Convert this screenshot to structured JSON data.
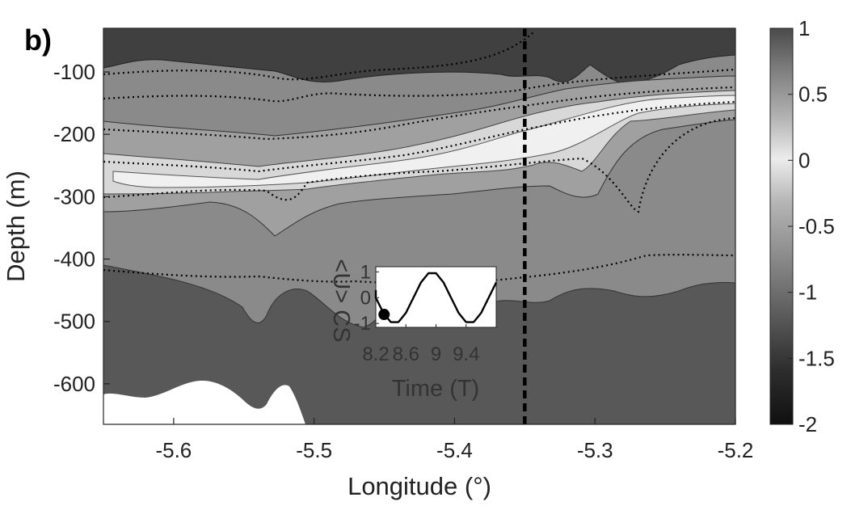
{
  "panel_label": "b)",
  "chart_data": [
    {
      "type": "heatmap",
      "title": "",
      "xlabel": "Longitude (°)",
      "ylabel": "Depth (m)",
      "xlim": [
        -5.65,
        -5.2
      ],
      "ylim": [
        -665,
        -30
      ],
      "x_ticks": [
        -5.6,
        -5.5,
        -5.4,
        -5.3,
        -5.2
      ],
      "x_tick_labels": [
        "-5.6",
        "-5.5",
        "-5.4",
        "-5.3",
        "-5.2"
      ],
      "y_ticks": [
        -100,
        -200,
        -300,
        -400,
        -500,
        -600
      ],
      "y_tick_labels": [
        "-100",
        "-200",
        "-300",
        "-400",
        "-500",
        "-600"
      ],
      "colorbar": {
        "range": [
          -2,
          1
        ],
        "ticks": [
          1,
          0.5,
          0,
          -0.5,
          -1,
          -1.5,
          -2
        ],
        "tick_labels": [
          "1",
          "0.5",
          "0",
          "-0.5",
          "-1",
          "-1.5",
          "-2"
        ],
        "colormap": "gray"
      },
      "vertical_marker_x": -5.35,
      "bottom_topography_masked": true,
      "grid": false
    },
    {
      "type": "line",
      "title": "",
      "xlabel": "Time (T)",
      "ylabel": "<U> CS",
      "xlim": [
        8.2,
        9.8
      ],
      "ylim": [
        -1,
        1
      ],
      "x_ticks": [
        8.2,
        8.6,
        9,
        9.4
      ],
      "x_tick_labels": [
        "8.2",
        "8.6",
        "9",
        "9.4"
      ],
      "y_ticks": [
        1,
        0,
        -1
      ],
      "y_tick_labels": [
        "1",
        "0",
        "-1"
      ],
      "series": [
        {
          "x": [
            8.1,
            8.2,
            8.3,
            8.4,
            8.5,
            8.6,
            8.7,
            8.8,
            8.9,
            9.0,
            9.1,
            9.2,
            9.3,
            9.4,
            9.5,
            9.6,
            9.7,
            9.8
          ],
          "values": [
            0.59,
            0.0,
            -0.59,
            -0.95,
            -0.95,
            -0.59,
            0.0,
            0.59,
            0.95,
            0.95,
            0.59,
            0.0,
            -0.59,
            -0.95,
            -0.95,
            -0.59,
            0.0,
            0.59
          ]
        }
      ],
      "marker": {
        "x": 8.31,
        "y": -0.65
      }
    }
  ]
}
